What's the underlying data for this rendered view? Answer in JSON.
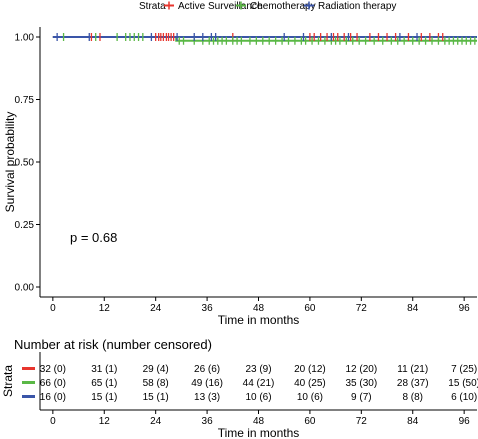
{
  "chart_data": [
    {
      "type": "line",
      "subtype": "kaplan-meier",
      "title": "",
      "xlabel": "Time in months",
      "ylabel": "Survival probability",
      "xlim": [
        -3,
        99
      ],
      "ylim": [
        -0.04,
        1.04
      ],
      "x_ticks": [
        "0",
        "12",
        "24",
        "36",
        "48",
        "60",
        "72",
        "84",
        "96"
      ],
      "y_ticks": [
        "0.00",
        "0.25",
        "0.50",
        "0.75",
        "1.00"
      ],
      "legend": {
        "title": "Strata",
        "placement": "top"
      },
      "annotation": "p = 0.68",
      "series": [
        {
          "name": "Active Surveillance",
          "color": "#e8352e",
          "x": [
            0,
            99
          ],
          "y": [
            1.0,
            1.0
          ],
          "censor_x": [
            9,
            11,
            24,
            24.7,
            25.2,
            25.8,
            26.5,
            27,
            27.6,
            28.2,
            42,
            60,
            61,
            62.5,
            64,
            65.5,
            66.5,
            68,
            69.5,
            71,
            74,
            76,
            78,
            80,
            83,
            86,
            88,
            90,
            91
          ]
        },
        {
          "name": "Chemotherapy",
          "color": "#5ab846",
          "x": [
            0,
            28.8,
            28.8,
            99
          ],
          "y": [
            1.0,
            1.0,
            0.985,
            0.985
          ],
          "censor_x": [
            2.5,
            10,
            15,
            17,
            18,
            19,
            20,
            21,
            29.5,
            30.5,
            33,
            35,
            36.5,
            37.5,
            38.5,
            39.5,
            40.5,
            42,
            43,
            44,
            46,
            47.5,
            49,
            50.5,
            52,
            53.5,
            55,
            56.5,
            58,
            59,
            60.5,
            62,
            63.5,
            65,
            66,
            67,
            68.5,
            70,
            71.5,
            73,
            75,
            77,
            79,
            80.5,
            82,
            84,
            85.5,
            87,
            88.5,
            90,
            91.5,
            92.5,
            93.5,
            94.5,
            95.5,
            96.5,
            97.5,
            98.5
          ]
        },
        {
          "name": "Radiation therapy",
          "color": "#3a55a8",
          "x": [
            0,
            99
          ],
          "y": [
            1.0,
            1.0
          ],
          "censor_x": [
            1,
            8.5,
            23,
            29,
            33,
            35,
            37,
            38,
            54,
            58.5,
            65,
            69,
            81,
            85
          ]
        }
      ]
    },
    {
      "type": "table",
      "title": "Number at risk (number censored)",
      "xlabel": "Time in months",
      "ylabel": "Strata",
      "x_ticks": [
        "0",
        "12",
        "24",
        "36",
        "48",
        "60",
        "72",
        "84",
        "96"
      ],
      "rows": [
        {
          "color": "#e8352e",
          "cells": [
            "32 (0)",
            "31 (1)",
            "29 (4)",
            "26 (6)",
            "23 (9)",
            "20 (12)",
            "12 (20)",
            "11 (21)",
            "7 (25)"
          ]
        },
        {
          "color": "#5ab846",
          "cells": [
            "66 (0)",
            "65 (1)",
            "58 (8)",
            "49 (16)",
            "44 (21)",
            "40 (25)",
            "35 (30)",
            "28 (37)",
            "15 (50)"
          ]
        },
        {
          "color": "#3a55a8",
          "cells": [
            "16 (0)",
            "15 (1)",
            "15 (1)",
            "13 (3)",
            "10 (6)",
            "10 (6)",
            "9 (7)",
            "8 (8)",
            "6 (10)"
          ]
        }
      ]
    }
  ]
}
